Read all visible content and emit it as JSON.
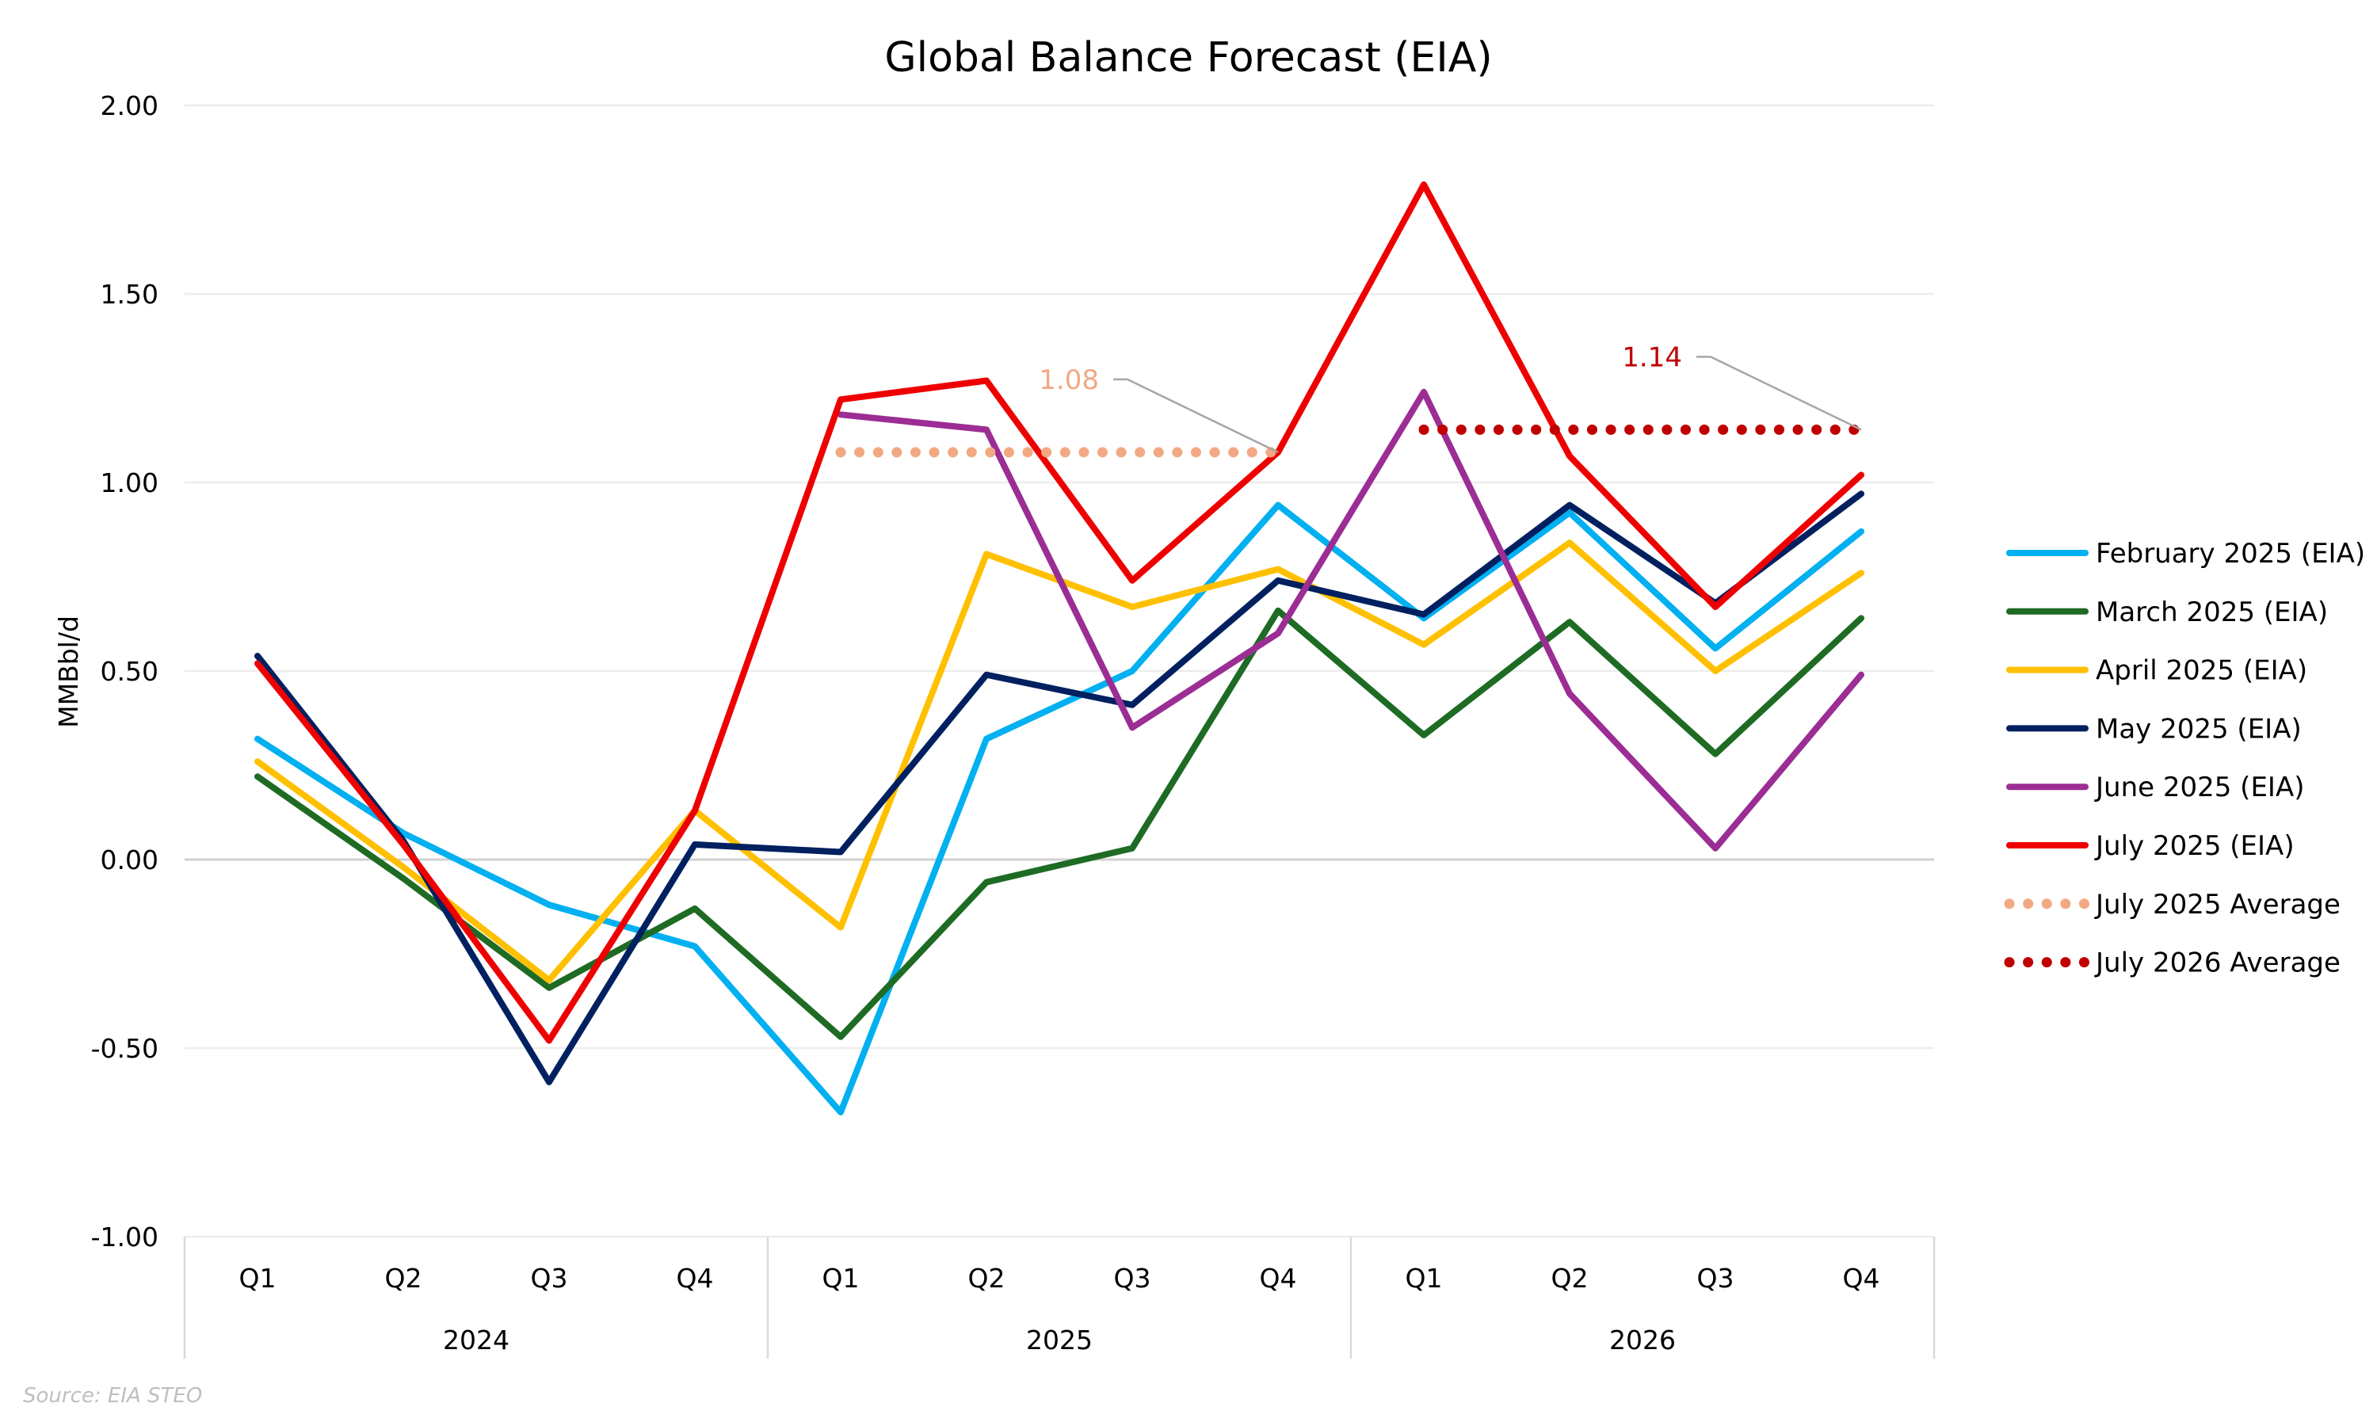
{
  "chart_data": {
    "type": "line",
    "title": "Global Balance Forecast (EIA)",
    "xlabel": "",
    "ylabel": "MMBbl/d",
    "ylim": [
      -1.0,
      2.0
    ],
    "yticks": [
      2.0,
      1.5,
      1.0,
      0.5,
      0.0,
      -0.5,
      -1.0
    ],
    "ytick_labels": [
      "2.00",
      "1.50",
      "1.00",
      "0.50",
      "0.00",
      "-0.50",
      "-1.00"
    ],
    "grid": true,
    "legend_position": "right",
    "categories": [
      "Q1",
      "Q2",
      "Q3",
      "Q4",
      "Q1",
      "Q2",
      "Q3",
      "Q4",
      "Q1",
      "Q2",
      "Q3",
      "Q4"
    ],
    "category_groups": [
      {
        "label": "2024",
        "span": 4
      },
      {
        "label": "2025",
        "span": 4
      },
      {
        "label": "2026",
        "span": 4
      }
    ],
    "series": [
      {
        "name": "February 2025 (EIA)",
        "color": "#00B0F0",
        "style": "solid",
        "values": [
          0.32,
          0.07,
          -0.12,
          -0.23,
          -0.67,
          0.32,
          0.5,
          0.94,
          0.64,
          0.92,
          0.56,
          0.87
        ]
      },
      {
        "name": "March 2025 (EIA)",
        "color": "#1E6B24",
        "style": "solid",
        "values": [
          0.22,
          -0.05,
          -0.34,
          -0.13,
          -0.47,
          -0.06,
          0.03,
          0.66,
          0.33,
          0.63,
          0.28,
          0.64
        ]
      },
      {
        "name": "April 2025 (EIA)",
        "color": "#FFC000",
        "style": "solid",
        "values": [
          0.26,
          -0.02,
          -0.32,
          0.13,
          -0.18,
          0.81,
          0.67,
          0.77,
          0.57,
          0.84,
          0.5,
          0.76
        ]
      },
      {
        "name": "May 2025 (EIA)",
        "color": "#002060",
        "style": "solid",
        "values": [
          0.54,
          0.05,
          -0.59,
          0.04,
          0.02,
          0.49,
          0.41,
          0.74,
          0.65,
          0.94,
          0.68,
          0.97
        ]
      },
      {
        "name": "June 2025 (EIA)",
        "color": "#9B2D94",
        "style": "solid",
        "values": [
          null,
          null,
          null,
          null,
          1.18,
          1.14,
          0.35,
          0.6,
          1.24,
          0.44,
          0.03,
          0.49
        ]
      },
      {
        "name": "July 2025 (EIA)",
        "color": "#EE0000",
        "style": "solid",
        "values": [
          0.52,
          0.04,
          -0.48,
          0.13,
          1.22,
          1.27,
          0.74,
          1.08,
          1.79,
          1.07,
          0.67,
          1.02
        ]
      },
      {
        "name": "July 2025 Average",
        "color": "#F2A983",
        "style": "dotted",
        "values": [
          null,
          null,
          null,
          null,
          1.08,
          1.08,
          1.08,
          1.08,
          null,
          null,
          null,
          null
        ]
      },
      {
        "name": "July 2026 Average",
        "color": "#C00000",
        "style": "dotted",
        "values": [
          null,
          null,
          null,
          null,
          null,
          null,
          null,
          null,
          1.14,
          1.14,
          1.14,
          1.14
        ]
      }
    ],
    "annotations": [
      {
        "text": "1.08",
        "color": "#F2A983",
        "points_to_series": "July 2025 Average",
        "points_to_index": 7
      },
      {
        "text": "1.14",
        "color": "#C00000",
        "points_to_series": "July 2026 Average",
        "points_to_index": 11
      }
    ],
    "source": "Source: EIA STEO"
  }
}
